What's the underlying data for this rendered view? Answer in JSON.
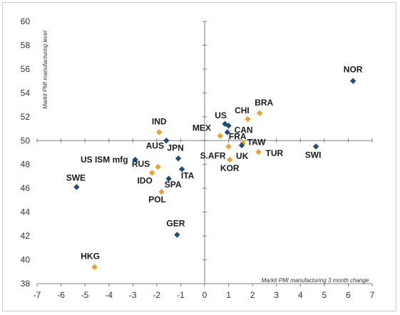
{
  "chart_data": {
    "type": "scatter",
    "title": "",
    "xlabel": "Markit PMI manufacturing 3 month change",
    "ylabel": "Markit PMI manufacturing level",
    "xlim": [
      -7,
      7
    ],
    "ylim": [
      38,
      60
    ],
    "x_ticks": [
      -7,
      -6,
      -5,
      -4,
      -3,
      -2,
      -1,
      0,
      1,
      2,
      3,
      4,
      5,
      6,
      7
    ],
    "y_ticks": [
      38,
      40,
      42,
      44,
      46,
      48,
      50,
      52,
      54,
      56,
      58,
      60
    ],
    "grid": false,
    "legend": "none",
    "colors": {
      "blue": "#1f4e79",
      "orange": "#f0a030",
      "axis": "#808080"
    },
    "points": [
      {
        "label": "NOR",
        "x": 6.2,
        "y": 55.0,
        "color": "blue"
      },
      {
        "label": "BRA",
        "x": 2.3,
        "y": 52.3,
        "color": "orange"
      },
      {
        "label": "CHI",
        "x": 1.8,
        "y": 51.8,
        "color": "orange"
      },
      {
        "label": "US",
        "x": 0.85,
        "y": 51.4,
        "color": "blue"
      },
      {
        "label": "CAN",
        "x": 1.0,
        "y": 51.25,
        "color": "blue"
      },
      {
        "label": "MEX",
        "x": 0.65,
        "y": 50.4,
        "color": "orange"
      },
      {
        "label": "FRA",
        "x": 0.95,
        "y": 50.7,
        "color": "blue"
      },
      {
        "label": "TAW",
        "x": 1.6,
        "y": 49.8,
        "color": "orange"
      },
      {
        "label": "S.AFR",
        "x": 1.0,
        "y": 49.5,
        "color": "orange"
      },
      {
        "label": "UK",
        "x": 1.55,
        "y": 49.6,
        "color": "blue"
      },
      {
        "label": "TUR",
        "x": 2.25,
        "y": 49.05,
        "color": "orange"
      },
      {
        "label": "KOR",
        "x": 1.05,
        "y": 48.4,
        "color": "orange"
      },
      {
        "label": "SWI",
        "x": 4.65,
        "y": 49.5,
        "color": "blue"
      },
      {
        "label": "IND",
        "x": -1.9,
        "y": 50.7,
        "color": "orange"
      },
      {
        "label": "AUS",
        "x": -1.6,
        "y": 50.0,
        "color": "blue"
      },
      {
        "label": "JPN",
        "x": -1.1,
        "y": 48.5,
        "color": "blue"
      },
      {
        "label": "US ISM mfg",
        "x": -2.9,
        "y": 48.4,
        "color": "blue"
      },
      {
        "label": "RUS",
        "x": -1.95,
        "y": 47.8,
        "color": "orange"
      },
      {
        "label": "ITA",
        "x": -0.95,
        "y": 47.6,
        "color": "blue"
      },
      {
        "label": "IDO",
        "x": -2.2,
        "y": 47.3,
        "color": "orange"
      },
      {
        "label": "SPA",
        "x": -1.5,
        "y": 46.8,
        "color": "blue"
      },
      {
        "label": "POL",
        "x": -1.8,
        "y": 45.7,
        "color": "orange"
      },
      {
        "label": "SWE",
        "x": -5.35,
        "y": 46.1,
        "color": "blue"
      },
      {
        "label": "GER",
        "x": -1.15,
        "y": 42.1,
        "color": "blue"
      },
      {
        "label": "HKG",
        "x": -4.6,
        "y": 39.4,
        "color": "orange"
      }
    ]
  }
}
